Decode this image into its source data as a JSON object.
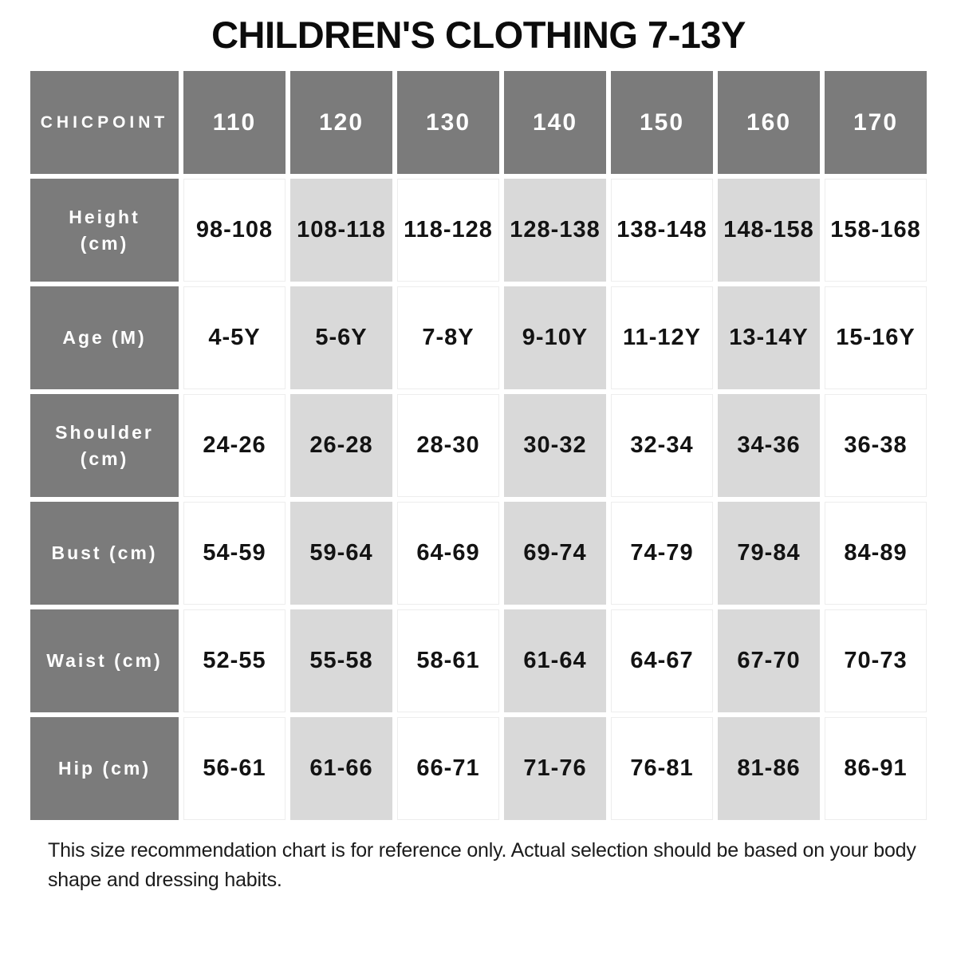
{
  "title": "CHILDREN'S CLOTHING 7-13Y",
  "footer_note": "This size recommendation chart is for reference only. Actual selection should be based on your body shape and dressing habits.",
  "colors": {
    "header_bg": "#7b7b7b",
    "header_text": "#ffffff",
    "shaded_cell_bg": "#d9d9d9",
    "plain_cell_bg": "#ffffff",
    "value_text": "#131313"
  },
  "chart_data": {
    "type": "table",
    "title": "CHILDREN'S CLOTHING 7-13Y",
    "brand": "CHICPOINT",
    "size_labels": [
      "110",
      "120",
      "130",
      "140",
      "150",
      "160",
      "170"
    ],
    "shaded_columns": [
      "120",
      "140",
      "160"
    ],
    "rows": [
      {
        "label": "Height (cm)",
        "values": [
          "98-108",
          "108-118",
          "118-128",
          "128-138",
          "138-148",
          "148-158",
          "158-168"
        ]
      },
      {
        "label": "Age (M)",
        "values": [
          "4-5Y",
          "5-6Y",
          "7-8Y",
          "9-10Y",
          "11-12Y",
          "13-14Y",
          "15-16Y"
        ]
      },
      {
        "label": "Shoulder (cm)",
        "values": [
          "24-26",
          "26-28",
          "28-30",
          "30-32",
          "32-34",
          "34-36",
          "36-38"
        ]
      },
      {
        "label": "Bust (cm)",
        "values": [
          "54-59",
          "59-64",
          "64-69",
          "69-74",
          "74-79",
          "79-84",
          "84-89"
        ]
      },
      {
        "label": "Waist (cm)",
        "values": [
          "52-55",
          "55-58",
          "58-61",
          "61-64",
          "64-67",
          "67-70",
          "70-73"
        ]
      },
      {
        "label": "Hip (cm)",
        "values": [
          "56-61",
          "61-66",
          "66-71",
          "71-76",
          "76-81",
          "81-86",
          "86-91"
        ]
      }
    ],
    "note": "This size recommendation chart is for reference only. Actual selection should be based on your body shape and dressing habits."
  }
}
